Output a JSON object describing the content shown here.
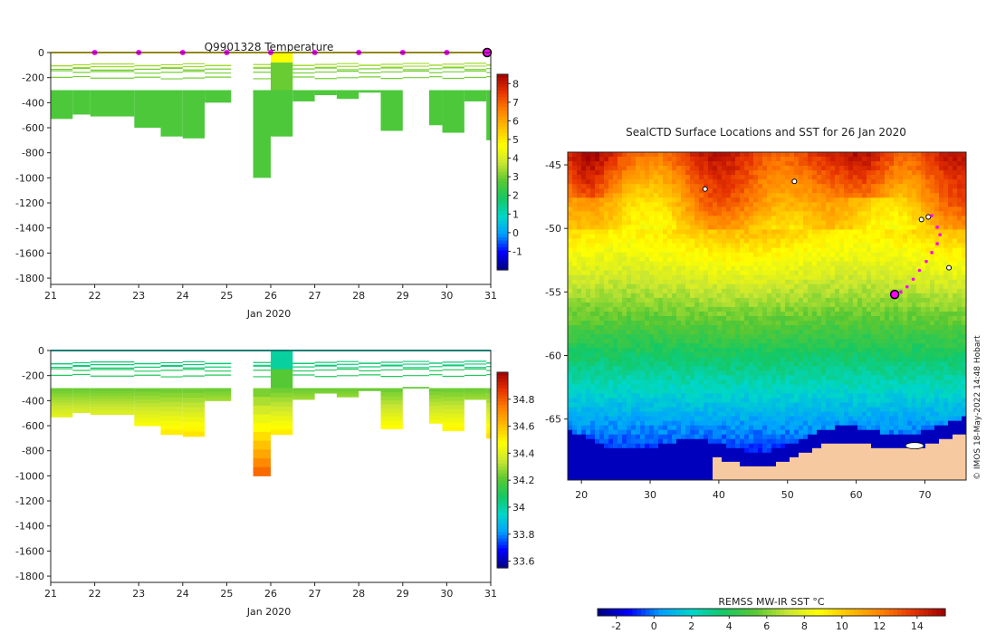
{
  "chart_data": [
    {
      "id": "temperature_section",
      "type": "heatmap",
      "title": "Q9901328  Temperature",
      "xlabel": "Jan 2020",
      "ylabel": "",
      "xlim": [
        21,
        31
      ],
      "ylim": [
        -1850,
        0
      ],
      "x_ticks": [
        21,
        22,
        23,
        24,
        25,
        26,
        27,
        28,
        29,
        30,
        31
      ],
      "y_ticks": [
        0,
        -200,
        -400,
        -600,
        -800,
        -1000,
        -1200,
        -1400,
        -1600,
        -1800
      ],
      "colorbar": {
        "min": -2,
        "max": 8.5,
        "ticks": [
          -1,
          0,
          1,
          2,
          3,
          4,
          5,
          6,
          7,
          8
        ]
      },
      "surface_marker_days": [
        22,
        23,
        24,
        25,
        26,
        27,
        28,
        29,
        30
      ],
      "current_position_day": 31,
      "profiles": [
        {
          "x0": 21.0,
          "x1": 21.5,
          "deep": -530,
          "value": 2.6
        },
        {
          "x0": 21.5,
          "x1": 21.9,
          "deep": -495,
          "value": 2.6
        },
        {
          "x0": 21.9,
          "x1": 22.9,
          "deep": -510,
          "value": 2.6
        },
        {
          "x0": 22.9,
          "x1": 23.5,
          "deep": -600,
          "value": 2.5
        },
        {
          "x0": 23.5,
          "x1": 24.0,
          "deep": -670,
          "value": 2.5
        },
        {
          "x0": 24.0,
          "x1": 24.5,
          "deep": -685,
          "value": 2.5
        },
        {
          "x0": 24.5,
          "x1": 25.1,
          "deep": -400,
          "value": 2.6
        },
        {
          "x0": 25.6,
          "x1": 26.0,
          "deep": -1000,
          "value": 2.5
        },
        {
          "x0": 26.0,
          "x1": 26.5,
          "deep": -670,
          "value": 2.6
        },
        {
          "x0": 26.5,
          "x1": 27.0,
          "deep": -390,
          "value": 2.6
        },
        {
          "x0": 27.0,
          "x1": 27.5,
          "deep": -340,
          "value": 2.6
        },
        {
          "x0": 27.5,
          "x1": 28.0,
          "deep": -370,
          "value": 2.6
        },
        {
          "x0": 28.0,
          "x1": 28.5,
          "deep": -320,
          "value": 2.6
        },
        {
          "x0": 28.5,
          "x1": 29.0,
          "deep": -625,
          "value": 2.6
        },
        {
          "x0": 29.0,
          "x1": 29.6,
          "deep": -290,
          "value": 2.6
        },
        {
          "x0": 29.6,
          "x1": 29.9,
          "deep": -580,
          "value": 2.6
        },
        {
          "x0": 29.9,
          "x1": 30.4,
          "deep": -640,
          "value": 2.6
        },
        {
          "x0": 30.4,
          "x1": 30.9,
          "deep": -390,
          "value": 2.6
        },
        {
          "x0": 30.9,
          "x1": 31.0,
          "deep": -700,
          "value": 2.6
        }
      ],
      "shallow_column": {
        "x0": 26.0,
        "x1": 26.5,
        "segments": [
          {
            "top": 0,
            "bottom": -80,
            "value": 4.6
          },
          {
            "top": -80,
            "bottom": -300,
            "value": 2.9
          }
        ]
      }
    },
    {
      "id": "salinity_section",
      "type": "heatmap",
      "title": "",
      "xlabel": "Jan 2020",
      "ylabel": "",
      "xlim": [
        21,
        31
      ],
      "ylim": [
        -1850,
        0
      ],
      "x_ticks": [
        21,
        22,
        23,
        24,
        25,
        26,
        27,
        28,
        29,
        30,
        31
      ],
      "y_ticks": [
        0,
        -200,
        -400,
        -600,
        -800,
        -1000,
        -1200,
        -1400,
        -1600,
        -1800
      ],
      "colorbar": {
        "min": 33.55,
        "max": 35.0,
        "ticks": [
          33.6,
          33.8,
          34,
          34.2,
          34.4,
          34.6,
          34.8
        ]
      },
      "profiles_ref": "same depths as temperature_section",
      "shallow_column": {
        "x0": 26.0,
        "x1": 26.5,
        "segments": [
          {
            "top": 0,
            "bottom": -150,
            "value": 34.0
          },
          {
            "top": -150,
            "bottom": -300,
            "value": 34.2
          }
        ]
      }
    },
    {
      "id": "surface_map",
      "type": "heatmap",
      "title": "SealCTD Surface Locations and SST for 26 Jan 2020",
      "xlim": [
        18,
        76
      ],
      "ylim": [
        -69.8,
        -44
      ],
      "x_ticks": [
        20,
        30,
        40,
        50,
        60,
        70
      ],
      "y_ticks": [
        -45,
        -50,
        -55,
        -60,
        -65
      ],
      "track": [
        {
          "lon": 71.0,
          "lat": -49.0
        },
        {
          "lon": 71.8,
          "lat": -49.9
        },
        {
          "lon": 72.2,
          "lat": -50.5
        },
        {
          "lon": 71.8,
          "lat": -51.2
        },
        {
          "lon": 71.0,
          "lat": -51.9
        },
        {
          "lon": 70.2,
          "lat": -52.6
        },
        {
          "lon": 69.2,
          "lat": -53.3
        },
        {
          "lon": 68.3,
          "lat": -54.0
        },
        {
          "lon": 67.4,
          "lat": -54.6
        },
        {
          "lon": 66.5,
          "lat": -55.0
        }
      ],
      "current_position": {
        "lon": 65.6,
        "lat": -55.2
      },
      "islands": [
        {
          "lon": 69.5,
          "lat": -49.3
        },
        {
          "lon": 70.5,
          "lat": -49.1
        },
        {
          "lon": 51.0,
          "lat": -46.3
        },
        {
          "lon": 38.0,
          "lat": -46.9
        },
        {
          "lon": 73.5,
          "lat": -53.1
        }
      ],
      "credit": "© IMOS 18-May-2022 14:48 Hobart",
      "colorbar": {
        "label": "REMSS MW-IR SST °C",
        "min": -3,
        "max": 15.5,
        "ticks": [
          -2,
          0,
          2,
          4,
          6,
          8,
          10,
          12,
          14
        ]
      }
    }
  ],
  "colors": {
    "jet_stops": [
      "#00007f",
      "#0000ff",
      "#00a0ff",
      "#00d7c8",
      "#14c864",
      "#5ac832",
      "#c8e632",
      "#ffff00",
      "#ffbe00",
      "#ff7f00",
      "#e63200",
      "#a00000"
    ],
    "land": "#f7c9a0",
    "ice": "#ffffff",
    "track": "#ff00ff",
    "marker": "#ff00ff"
  }
}
